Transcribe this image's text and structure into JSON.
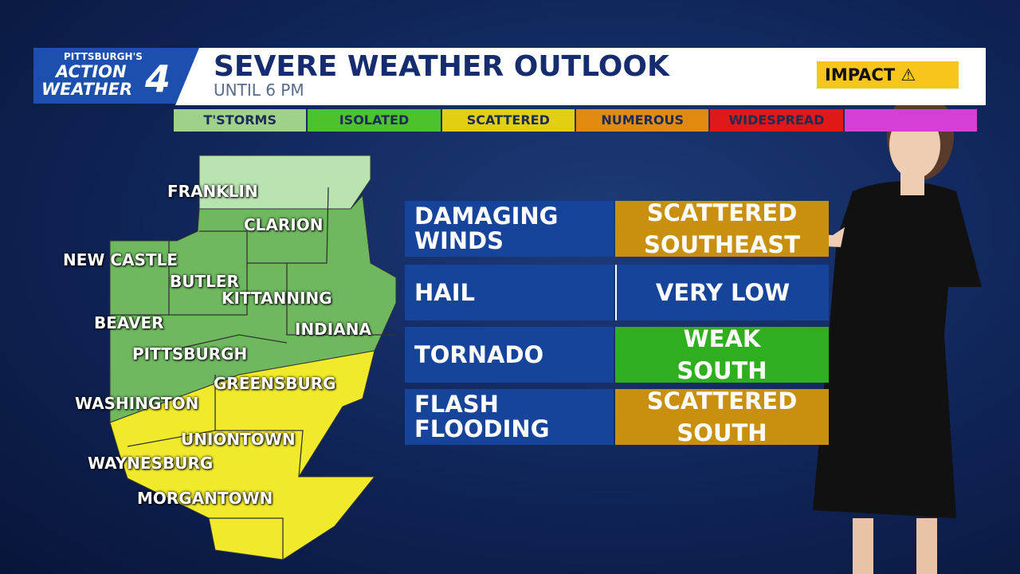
{
  "header": {
    "brand_top": "PITTSBURGH'S",
    "brand_line1": "ACTION",
    "brand_line2": "WEATHER",
    "brand_number": "4",
    "title": "SEVERE WEATHER OUTLOOK",
    "subtitle": "UNTIL 6 PM",
    "impact": "IMPACT"
  },
  "legend": [
    {
      "label": "T'STORMS",
      "color": "#9fd18a"
    },
    {
      "label": "ISOLATED",
      "color": "#4cc22c"
    },
    {
      "label": "SCATTERED",
      "color": "#e3cf12"
    },
    {
      "label": "NUMEROUS",
      "color": "#e08a12"
    },
    {
      "label": "WIDESPREAD",
      "color": "#e01818"
    },
    {
      "label": null,
      "color": "#d63fd6"
    }
  ],
  "map_labels": [
    "FRANKLIN",
    "CLARION",
    "NEW CASTLE",
    "BUTLER",
    "KITTANNING",
    "BEAVER",
    "INDIANA",
    "PITTSBURGH",
    "GREENSBURG",
    "WASHINGTON",
    "UNIONTOWN",
    "WAYNESBURG",
    "MORGANTOWN"
  ],
  "threats": [
    {
      "label": "DAMAGING WINDS",
      "level": "SCATTERED",
      "area": "SOUTHEAST",
      "color": "#c8900e"
    },
    {
      "label": "HAIL",
      "level": "VERY LOW",
      "area": null,
      "color": null
    },
    {
      "label": "TORNADO",
      "level": "WEAK",
      "area": "SOUTH",
      "color": "#2fae1f"
    },
    {
      "label": "FLASH FLOODING",
      "level": "SCATTERED",
      "area": "SOUTH",
      "color": "#c8900e"
    }
  ]
}
